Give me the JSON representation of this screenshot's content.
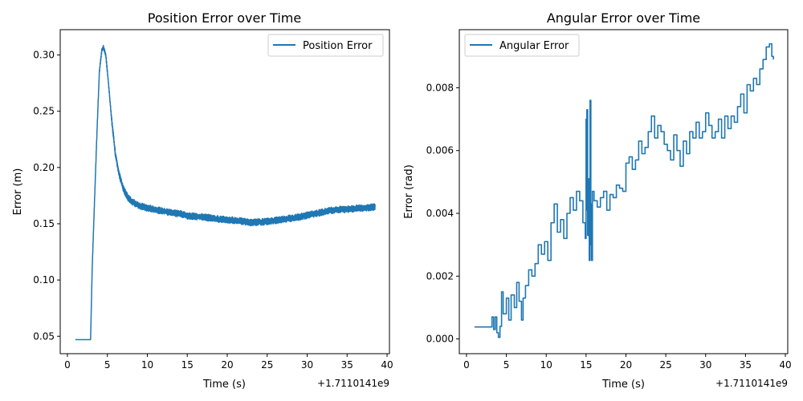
{
  "chart_data": [
    {
      "type": "line",
      "title": "Position Error over Time",
      "xlabel": "Time (s)",
      "ylabel": "Error (m)",
      "x_offset_label": "+1.7110141e9",
      "xlim": [
        -0.9,
        40.3
      ],
      "ylim": [
        0.0345,
        0.3225
      ],
      "xticks": [
        0,
        5,
        10,
        15,
        20,
        25,
        30,
        35,
        40
      ],
      "yticks": [
        0.05,
        0.1,
        0.15,
        0.2,
        0.25,
        0.3
      ],
      "ytick_labels": [
        "0.05",
        "0.10",
        "0.15",
        "0.20",
        "0.25",
        "0.30"
      ],
      "legend": {
        "position": "top-right",
        "entries": [
          "Position Error"
        ]
      },
      "grid": false,
      "color": "#1f77b4",
      "series": [
        {
          "name": "Position Error",
          "x": [
            1.0,
            2.9,
            3.1,
            3.4,
            3.7,
            4.0,
            4.3,
            4.5,
            4.8,
            5.1,
            5.5,
            6.0,
            6.5,
            7.0,
            7.5,
            8.0,
            9.0,
            10.0,
            12.0,
            14.0,
            15.0,
            17.0,
            19.0,
            21.0,
            23.0,
            25.0,
            27.0,
            29.0,
            31.0,
            33.0,
            35.0,
            37.0,
            38.5
          ],
          "y": [
            0.047,
            0.047,
            0.11,
            0.172,
            0.232,
            0.285,
            0.304,
            0.307,
            0.3,
            0.278,
            0.245,
            0.212,
            0.193,
            0.181,
            0.174,
            0.17,
            0.166,
            0.164,
            0.161,
            0.159,
            0.157,
            0.156,
            0.154,
            0.153,
            0.151,
            0.152,
            0.154,
            0.156,
            0.159,
            0.162,
            0.163,
            0.164,
            0.165
          ]
        }
      ],
      "noise_band": 0.003
    },
    {
      "type": "line",
      "title": "Angular Error over Time",
      "xlabel": "Time (s)",
      "ylabel": "Error (rad)",
      "x_offset_label": "+1.7110141e9",
      "xlim": [
        -0.9,
        40.3
      ],
      "ylim": [
        -0.00047,
        0.00985
      ],
      "xticks": [
        0,
        5,
        10,
        15,
        20,
        25,
        30,
        35,
        40
      ],
      "yticks": [
        0.0,
        0.002,
        0.004,
        0.006,
        0.008
      ],
      "ytick_labels": [
        "0.000",
        "0.002",
        "0.004",
        "0.006",
        "0.008"
      ],
      "legend": {
        "position": "top-left",
        "entries": [
          "Angular Error"
        ]
      },
      "grid": false,
      "color": "#1f77b4",
      "series": [
        {
          "name": "Angular Error",
          "x": [
            1.0,
            3.0,
            3.2,
            3.4,
            3.6,
            3.8,
            4.0,
            4.2,
            4.4,
            4.6,
            5.0,
            5.3,
            5.6,
            6.0,
            6.3,
            6.6,
            6.9,
            7.1,
            7.4,
            7.8,
            8.2,
            8.6,
            9.0,
            9.4,
            9.8,
            10.2,
            10.6,
            11.0,
            11.4,
            11.8,
            12.2,
            12.6,
            13.0,
            13.4,
            13.8,
            14.2,
            14.6,
            14.9,
            15.0,
            15.05,
            15.1,
            15.2,
            15.3,
            15.4,
            15.5,
            15.6,
            15.65,
            15.7,
            15.8,
            16.0,
            16.4,
            16.8,
            17.2,
            17.6,
            18.0,
            18.4,
            18.8,
            19.2,
            19.6,
            20.0,
            20.4,
            20.8,
            21.2,
            21.6,
            22.0,
            22.4,
            22.8,
            23.2,
            23.6,
            24.0,
            24.4,
            24.8,
            25.2,
            25.6,
            26.0,
            26.4,
            26.8,
            27.2,
            27.6,
            28.0,
            28.4,
            28.8,
            29.2,
            29.6,
            30.0,
            30.4,
            30.8,
            31.2,
            31.6,
            32.0,
            32.4,
            32.8,
            33.2,
            33.6,
            34.0,
            34.4,
            34.8,
            35.2,
            35.6,
            36.0,
            36.4,
            36.8,
            37.2,
            37.6,
            38.0,
            38.3,
            38.5
          ],
          "y": [
            0.00038,
            0.00038,
            0.0007,
            0.0003,
            0.0007,
            0.0002,
            5e-05,
            0.0004,
            0.0015,
            0.0008,
            0.0013,
            0.0006,
            0.0014,
            0.001,
            0.0018,
            0.0012,
            0.0006,
            0.0013,
            0.0017,
            0.0022,
            0.002,
            0.0024,
            0.003,
            0.0027,
            0.0031,
            0.0025,
            0.0037,
            0.0043,
            0.0034,
            0.0038,
            0.0032,
            0.004,
            0.0045,
            0.0041,
            0.0047,
            0.0044,
            0.0037,
            0.0032,
            0.007,
            0.0041,
            0.0073,
            0.0033,
            0.0051,
            0.0025,
            0.0076,
            0.003,
            0.0043,
            0.0025,
            0.0047,
            0.0044,
            0.0042,
            0.0045,
            0.0047,
            0.0041,
            0.0046,
            0.0045,
            0.0049,
            0.0048,
            0.0047,
            0.0056,
            0.0058,
            0.0054,
            0.0057,
            0.0063,
            0.0059,
            0.0061,
            0.0066,
            0.0071,
            0.0064,
            0.0068,
            0.0066,
            0.0062,
            0.006,
            0.0057,
            0.0065,
            0.006,
            0.0055,
            0.0063,
            0.0059,
            0.0066,
            0.0064,
            0.0069,
            0.0064,
            0.0066,
            0.0072,
            0.0068,
            0.0064,
            0.0066,
            0.007,
            0.0064,
            0.0071,
            0.0067,
            0.0071,
            0.0069,
            0.0074,
            0.0078,
            0.0072,
            0.0081,
            0.0079,
            0.0083,
            0.0081,
            0.0086,
            0.0089,
            0.0093,
            0.0094,
            0.009,
            0.0089
          ]
        }
      ]
    }
  ]
}
